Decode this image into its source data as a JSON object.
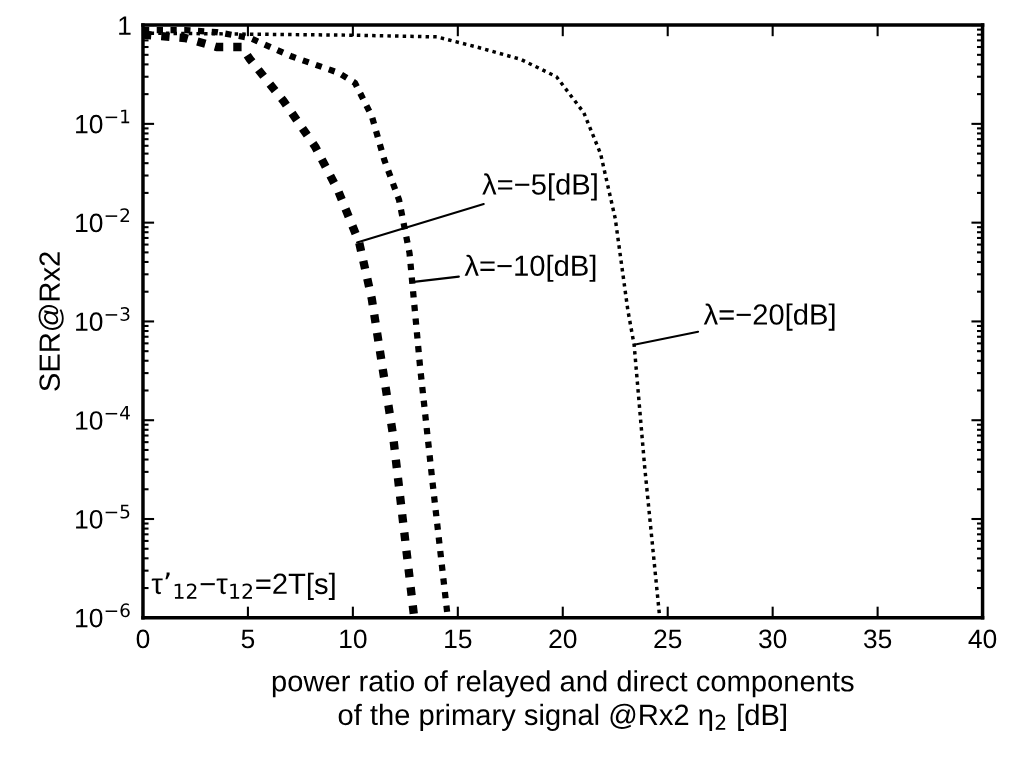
{
  "chart_data": {
    "type": "line",
    "xlabel": "power ratio of relayed and direct components\nof the primary signal @Rx2 η$_{2}$ [dB]",
    "ylabel": "SER@Rx2",
    "log": "y",
    "grid": false,
    "legend": false,
    "marker": "none",
    "line_style": "dotted",
    "xlim": [
      0,
      40
    ],
    "xticks": [
      0,
      5,
      10,
      15,
      20,
      25,
      30,
      35,
      40
    ],
    "ylim": [
      1e-06,
      1
    ],
    "yticks": [
      {
        "value": 1e-06,
        "label": "10$^{−6}$"
      },
      {
        "value": 1e-05,
        "label": "10$^{−5}$"
      },
      {
        "value": 0.0001,
        "label": "10$^{−4}$"
      },
      {
        "value": 0.001,
        "label": "10$^{−3}$"
      },
      {
        "value": 0.01,
        "label": "10$^{−2}$"
      },
      {
        "value": 0.1,
        "label": "10$^{−1}$"
      },
      {
        "value": 1,
        "label": "1"
      }
    ],
    "series": [
      {
        "color": "#000000",
        "x": [
          0,
          2,
          3.5,
          4.7,
          5.1,
          6.7,
          8.2,
          9.3,
          10.3,
          10.9,
          11.9,
          12.9
        ],
        "values": [
          0.8,
          0.74,
          0.6,
          0.6,
          0.45,
          0.17,
          0.059,
          0.021,
          0.0063,
          0.0017,
          7.4e-05,
          1.1e-06
        ]
      },
      {
        "color": "#000000",
        "x": [
          0,
          2,
          3.5,
          5.1,
          7.1,
          9.3,
          10.1,
          10.9,
          11.5,
          12.2,
          12.7,
          13.2,
          13.8,
          14.5
        ],
        "values": [
          0.89,
          0.89,
          0.85,
          0.74,
          0.48,
          0.33,
          0.26,
          0.12,
          0.043,
          0.017,
          0.0049,
          0.00035,
          2.3e-05,
          1.1e-06
        ]
      },
      {
        "color": "#000000",
        "x": [
          0,
          10,
          14,
          15.9,
          18,
          19.7,
          21,
          21.8,
          22.5,
          23.1,
          23.4,
          23.9,
          24.6
        ],
        "values": [
          0.83,
          0.79,
          0.76,
          0.6,
          0.45,
          0.3,
          0.13,
          0.05,
          0.011,
          0.0013,
          0.00058,
          3.4e-05,
          1.1e-06
        ]
      }
    ],
    "annotations": [
      {
        "text": "λ=−5[dB]",
        "x": 10.2,
        "y": 0.0063
      },
      {
        "text": "λ=−10[dB]",
        "x": 12.8,
        "y": 0.0025
      },
      {
        "text": "λ=−20[dB]",
        "x": 23.4,
        "y": 0.00058
      },
      "τ’$_{12}$−τ$_{12}$=2T[s]"
    ]
  }
}
